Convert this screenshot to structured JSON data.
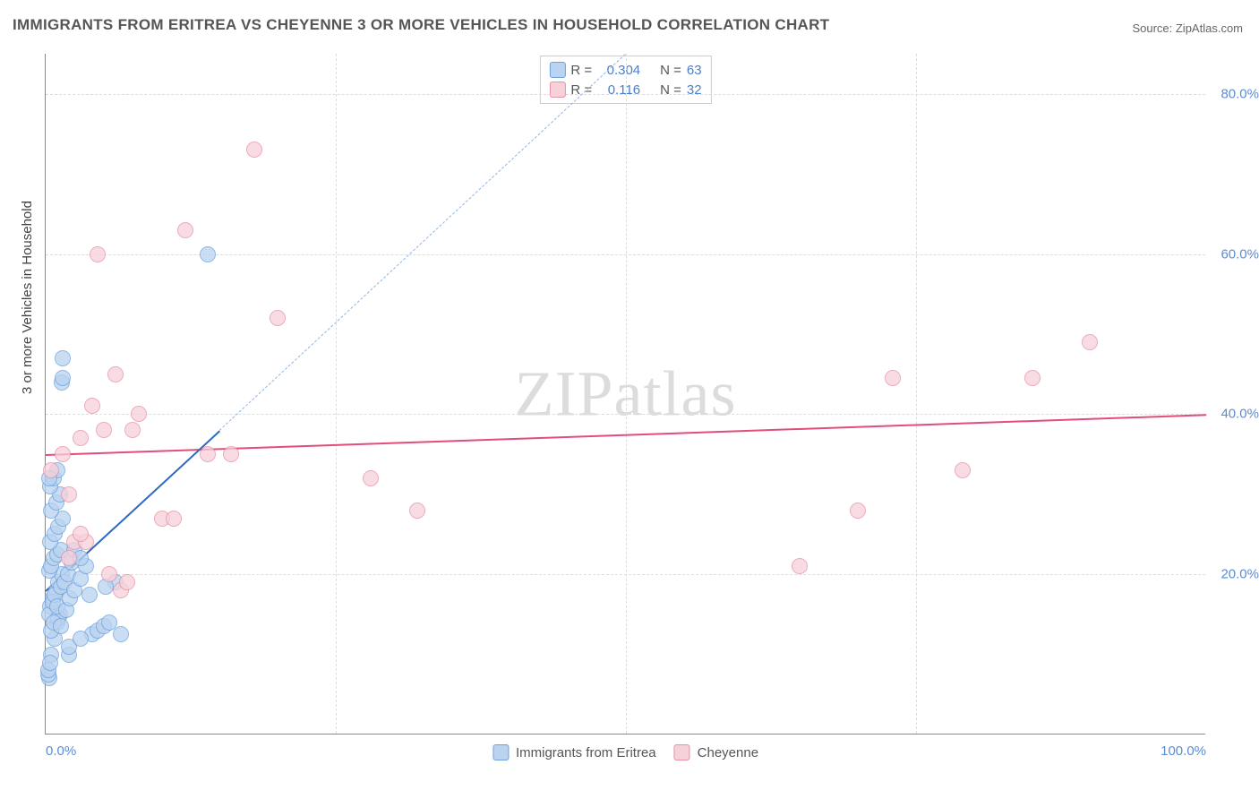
{
  "title": "IMMIGRANTS FROM ERITREA VS CHEYENNE 3 OR MORE VEHICLES IN HOUSEHOLD CORRELATION CHART",
  "source": "Source: ZipAtlas.com",
  "y_axis_title": "3 or more Vehicles in Household",
  "watermark": "ZIPatlas",
  "chart": {
    "type": "scatter",
    "xlim": [
      0,
      100
    ],
    "ylim": [
      0,
      85
    ],
    "x_ticks": [
      0,
      50,
      100
    ],
    "x_tick_labels": [
      "0.0%",
      "",
      "100.0%"
    ],
    "y_ticks": [
      20,
      40,
      60,
      80
    ],
    "y_tick_labels": [
      "20.0%",
      "40.0%",
      "60.0%",
      "80.0%"
    ],
    "v_gridlines": [
      25,
      50,
      75
    ],
    "h_gridlines": [
      20,
      40,
      60,
      80
    ],
    "background_color": "#ffffff",
    "grid_color": "#dddddd",
    "axis_color": "#888888",
    "marker_radius": 9,
    "marker_stroke_width": 1.5,
    "series": [
      {
        "name": "Immigrants from Eritrea",
        "fill": "#b9d3f0",
        "stroke": "#6ea0dd",
        "trend_color": "#2f6ac0",
        "trend_dash_color": "#8fb5e5",
        "trend": {
          "x1": 0,
          "y1": 18,
          "x2": 15,
          "y2": 38,
          "solid": true
        },
        "trend_dashed": {
          "x1": 15,
          "y1": 38,
          "x2": 50,
          "y2": 85
        },
        "R": "0.304",
        "N": "63",
        "points": [
          [
            0.3,
            7
          ],
          [
            0.5,
            10
          ],
          [
            0.8,
            12
          ],
          [
            1.0,
            14
          ],
          [
            1.2,
            15
          ],
          [
            0.4,
            16
          ],
          [
            0.6,
            17
          ],
          [
            0.9,
            18
          ],
          [
            1.1,
            19
          ],
          [
            1.4,
            20
          ],
          [
            0.3,
            20.5
          ],
          [
            0.5,
            21
          ],
          [
            0.7,
            22
          ],
          [
            1.0,
            22.5
          ],
          [
            1.3,
            23
          ],
          [
            0.4,
            24
          ],
          [
            0.8,
            25
          ],
          [
            1.1,
            26
          ],
          [
            1.5,
            27
          ],
          [
            0.5,
            28
          ],
          [
            0.9,
            29
          ],
          [
            1.2,
            30
          ],
          [
            0.4,
            31
          ],
          [
            0.7,
            32
          ],
          [
            1.0,
            33
          ],
          [
            0.3,
            15
          ],
          [
            0.6,
            16.5
          ],
          [
            0.8,
            17.5
          ],
          [
            1.1,
            14.5
          ],
          [
            1.3,
            18.5
          ],
          [
            1.6,
            19
          ],
          [
            1.9,
            20
          ],
          [
            2.2,
            21.5
          ],
          [
            2.5,
            23
          ],
          [
            0.5,
            13
          ],
          [
            0.7,
            14
          ],
          [
            1.0,
            16
          ],
          [
            1.3,
            13.5
          ],
          [
            1.8,
            15.5
          ],
          [
            2.1,
            17
          ],
          [
            2.5,
            18
          ],
          [
            3.0,
            19.5
          ],
          [
            3.5,
            21
          ],
          [
            4.0,
            12.5
          ],
          [
            4.5,
            13
          ],
          [
            5.0,
            13.5
          ],
          [
            5.5,
            14
          ],
          [
            6.0,
            19
          ],
          [
            2.0,
            10
          ],
          [
            2.0,
            11
          ],
          [
            3.0,
            12
          ],
          [
            3.8,
            17.5
          ],
          [
            5.2,
            18.5
          ],
          [
            6.5,
            12.5
          ],
          [
            0.2,
            7.5
          ],
          [
            0.3,
            32
          ],
          [
            1.4,
            44
          ],
          [
            1.5,
            44.5
          ],
          [
            1.5,
            47
          ],
          [
            0.2,
            8
          ],
          [
            0.4,
            9
          ],
          [
            14.0,
            60
          ],
          [
            3.0,
            22
          ]
        ]
      },
      {
        "name": "Cheyenne",
        "fill": "#f7d1da",
        "stroke": "#e690a4",
        "trend_color": "#e14f78",
        "trend": {
          "x1": 0,
          "y1": 35,
          "x2": 100,
          "y2": 40,
          "solid": true
        },
        "R": "0.116",
        "N": "32",
        "points": [
          [
            0.5,
            33
          ],
          [
            1.5,
            35
          ],
          [
            2.0,
            30
          ],
          [
            3.0,
            37
          ],
          [
            4.0,
            41
          ],
          [
            5.0,
            38
          ],
          [
            6.0,
            45
          ],
          [
            7.5,
            38
          ],
          [
            8.0,
            40
          ],
          [
            10.0,
            27
          ],
          [
            11.0,
            27
          ],
          [
            12.0,
            63
          ],
          [
            14.0,
            35
          ],
          [
            16.0,
            35
          ],
          [
            18.0,
            73
          ],
          [
            20.0,
            52
          ],
          [
            28.0,
            32
          ],
          [
            32.0,
            28
          ],
          [
            2.5,
            24
          ],
          [
            3.5,
            24
          ],
          [
            5.5,
            20
          ],
          [
            6.5,
            18
          ],
          [
            7.0,
            19
          ],
          [
            65.0,
            21
          ],
          [
            70.0,
            28
          ],
          [
            73.0,
            44.5
          ],
          [
            79.0,
            33
          ],
          [
            85.0,
            44.5
          ],
          [
            90.0,
            49
          ],
          [
            4.5,
            60
          ],
          [
            3.0,
            25
          ],
          [
            2.0,
            22
          ]
        ]
      }
    ]
  },
  "legend_top": {
    "rows": [
      {
        "swatch_fill": "#b9d3f0",
        "swatch_stroke": "#6ea0dd",
        "R_label": "R =",
        "R": "0.304",
        "N_label": "N =",
        "N": "63"
      },
      {
        "swatch_fill": "#f7d1da",
        "swatch_stroke": "#e690a4",
        "R_label": "R =",
        "R": "0.116",
        "N_label": "N =",
        "N": "32"
      }
    ]
  },
  "legend_bottom": {
    "items": [
      {
        "swatch_fill": "#b9d3f0",
        "swatch_stroke": "#6ea0dd",
        "label": "Immigrants from Eritrea"
      },
      {
        "swatch_fill": "#f7d1da",
        "swatch_stroke": "#e690a4",
        "label": "Cheyenne"
      }
    ]
  }
}
